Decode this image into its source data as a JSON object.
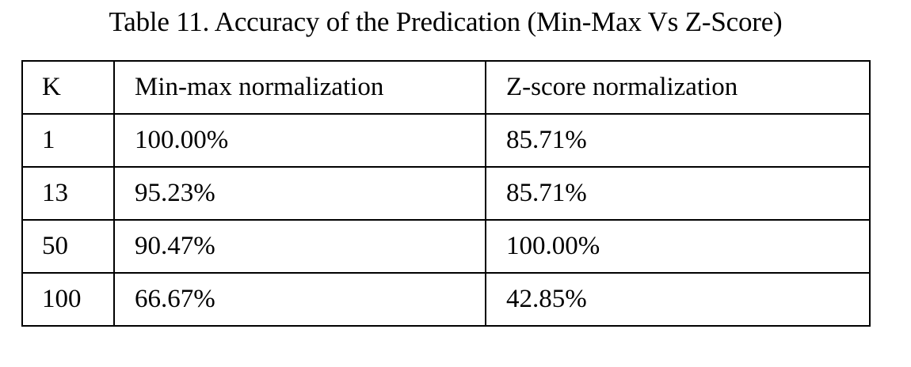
{
  "caption": "Table 11. Accuracy of the Predication (Min-Max Vs Z-Score)",
  "table": {
    "headers": [
      "K",
      "Min-max normalization",
      "Z-score normalization"
    ],
    "rows": [
      [
        "1",
        "100.00%",
        "85.71%"
      ],
      [
        "13",
        "95.23%",
        "85.71%"
      ],
      [
        "50",
        "90.47%",
        "100.00%"
      ],
      [
        "100",
        "66.67%",
        "42.85%"
      ]
    ]
  }
}
